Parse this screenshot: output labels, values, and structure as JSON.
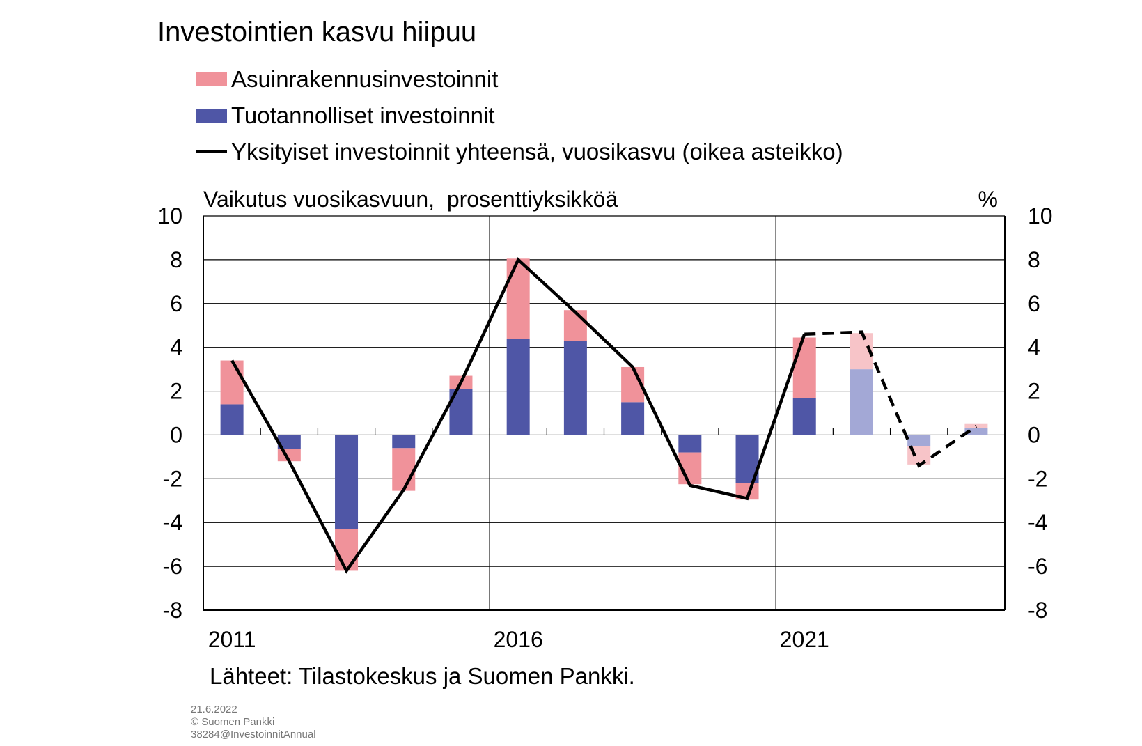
{
  "title": "Investointien kasvu hiipuu",
  "legend": [
    {
      "label": "Asuinrakennusinvestoinnit",
      "color": "#f0929a",
      "kind": "bar"
    },
    {
      "label": "Tuotannolliset investoinnit",
      "color": "#4f56a6",
      "kind": "bar"
    },
    {
      "label": "Yksityiset investoinnit yhteensä, vuosikasvu (oikea asteikko)",
      "color": "#000000",
      "kind": "line"
    }
  ],
  "left_axis_title": "Vaikutus vuosikasvuun,  prosenttiyksikköä",
  "right_axis_title": "%",
  "source": "Lähteet: Tilastokeskus ja Suomen Pankki.",
  "meta": [
    "21.6.2022",
    "© Suomen Pankki",
    "38284@InvestoinnitAnnual"
  ],
  "chart_data": {
    "type": "bar",
    "stacked": true,
    "years": [
      2011,
      2012,
      2013,
      2014,
      2015,
      2016,
      2017,
      2018,
      2019,
      2020,
      2021,
      2022,
      2023,
      2024
    ],
    "x_tick_labels": [
      {
        "year": 2011,
        "label": "2011"
      },
      {
        "year": 2016,
        "label": "2016"
      },
      {
        "year": 2021,
        "label": "2021"
      }
    ],
    "forecast_from": 2022,
    "ylim": [
      -8,
      10
    ],
    "yticks": [
      10,
      8,
      6,
      4,
      2,
      0,
      -2,
      -4,
      -6,
      -8
    ],
    "y_tick_labels": [
      "10",
      "8",
      "6",
      "4",
      "2",
      "0",
      "-2",
      "-4",
      "-6",
      "-8"
    ],
    "y2lim": [
      -8,
      10
    ],
    "grid": true,
    "series": [
      {
        "name": "Tuotannolliset investoinnit",
        "color": "#4f56a6",
        "forecast_color": "#a3a8d6",
        "values": [
          1.4,
          -0.65,
          -4.3,
          -0.6,
          2.1,
          4.4,
          4.3,
          1.5,
          -0.8,
          -2.2,
          1.7,
          3.0,
          -0.5,
          0.3
        ]
      },
      {
        "name": "Asuinrakennusinvestoinnit",
        "color": "#f0929a",
        "forecast_color": "#f7c4c8",
        "values": [
          2.0,
          -0.55,
          -1.9,
          -1.95,
          0.6,
          3.65,
          1.4,
          1.6,
          -1.45,
          -0.75,
          2.75,
          1.65,
          -0.85,
          0.2
        ]
      },
      {
        "name": "Yksityiset investoinnit yhteensä, vuosikasvu (oikea asteikko)",
        "type": "line",
        "color": "#000000",
        "values": [
          3.4,
          -1.2,
          -6.2,
          -2.5,
          2.4,
          8.0,
          5.6,
          3.1,
          -2.3,
          -2.9,
          4.6,
          4.7,
          -1.4,
          0.4
        ]
      }
    ]
  }
}
